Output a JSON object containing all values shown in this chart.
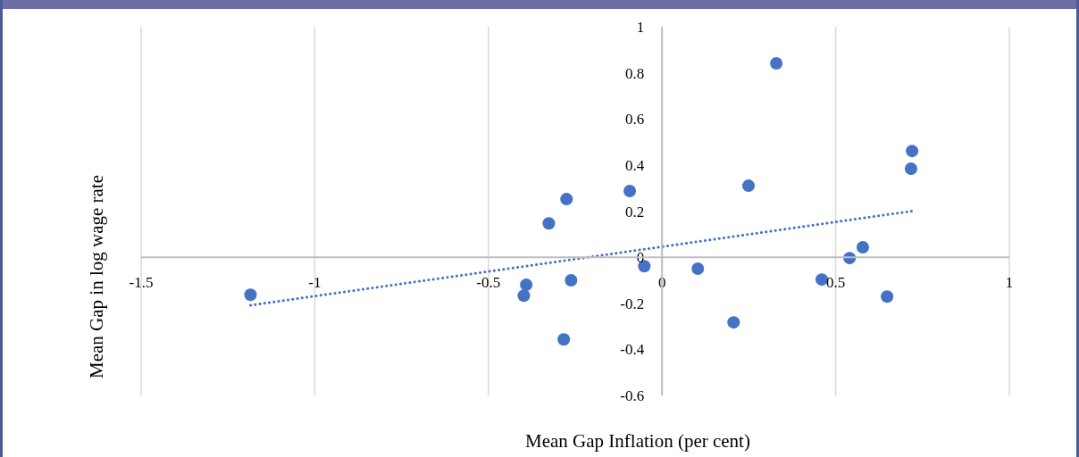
{
  "chart_data": {
    "type": "scatter",
    "xlabel": "Mean Gap Inflation (per cent)",
    "ylabel": "Mean Gap in log wage rate",
    "x": [
      -1.185,
      -0.391,
      -0.398,
      -0.326,
      -0.275,
      -0.262,
      -0.283,
      -0.093,
      -0.051,
      0.103,
      0.249,
      0.329,
      0.206,
      0.46,
      0.54,
      0.578,
      0.648,
      0.72,
      0.717
    ],
    "series": [
      {
        "color": "#4472c4",
        "marker": "circle",
        "values": [
          -0.163,
          -0.12,
          -0.167,
          0.147,
          0.252,
          -0.1,
          -0.357,
          0.287,
          -0.039,
          -0.05,
          0.31,
          0.841,
          -0.283,
          -0.097,
          -0.004,
          0.043,
          -0.171,
          0.461,
          0.384
        ]
      },
      {
        "type": "line",
        "color": "#4472c4",
        "line_style": "dotted",
        "x": [
          -1.185,
          0.72
        ],
        "values": [
          -0.209,
          0.2
        ]
      }
    ],
    "xlim": [
      -1.5,
      1
    ],
    "xticks": [
      -1.5,
      -1,
      -0.5,
      0,
      0.5,
      1
    ],
    "ylim": [
      -0.6,
      1
    ],
    "yticks": [
      -0.6,
      -0.4,
      -0.2,
      0,
      0.2,
      0.4,
      0.6,
      0.8,
      1
    ],
    "grid": "x"
  }
}
